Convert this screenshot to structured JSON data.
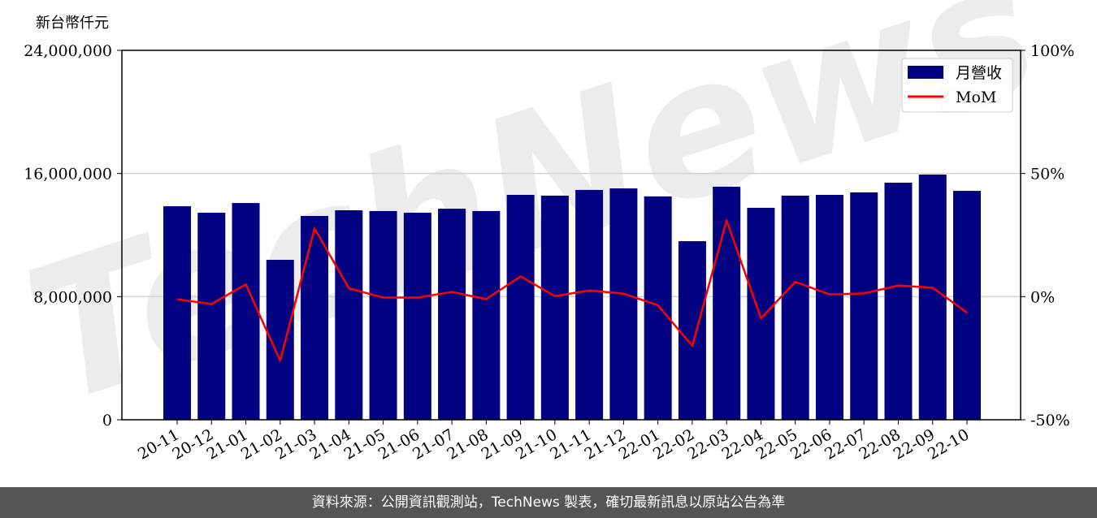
{
  "chart_data": {
    "type": "bar+line",
    "ylabel": "新台幣仟元",
    "categories": [
      "20-11",
      "20-12",
      "21-01",
      "21-02",
      "21-03",
      "21-04",
      "21-05",
      "21-06",
      "21-07",
      "21-08",
      "21-09",
      "21-10",
      "21-11",
      "21-12",
      "22-01",
      "22-02",
      "22-03",
      "22-04",
      "22-05",
      "22-06",
      "22-07",
      "22-08",
      "22-09",
      "22-10"
    ],
    "series": [
      {
        "name": "月營收",
        "type": "bar",
        "axis": "left",
        "color": "#000080",
        "values": [
          13870000,
          13450000,
          14080000,
          10390000,
          13240000,
          13610000,
          13560000,
          13450000,
          13710000,
          13560000,
          14610000,
          14560000,
          14930000,
          15030000,
          14510000,
          11600000,
          15140000,
          13770000,
          14560000,
          14610000,
          14770000,
          15400000,
          15930000,
          14870000
        ]
      },
      {
        "name": "MoM",
        "type": "line",
        "axis": "right",
        "color": "#ff0000",
        "values": [
          -1.1,
          -3.0,
          5.0,
          -26.0,
          27.7,
          3.4,
          -0.4,
          -0.4,
          1.9,
          -1.0,
          8.2,
          0.2,
          2.5,
          1.2,
          -3.5,
          -20.0,
          31.0,
          -8.8,
          6.0,
          0.9,
          1.3,
          4.5,
          3.6,
          -6.5
        ]
      }
    ],
    "ylim": [
      0,
      24000000
    ],
    "y_ticks": [
      "0",
      "8,000,000",
      "16,000,000",
      "24,000,000"
    ],
    "y2lim": [
      -50,
      100
    ],
    "y2_ticks": [
      "-50%",
      "0%",
      "50%",
      "100%"
    ],
    "grid": "horizontal",
    "legend": "top-right"
  },
  "watermark": "TechNews",
  "footer": {
    "source": "資料來源：公開資訊觀測站，TechNews 製表，確切最新訊息以原站公告為準"
  }
}
